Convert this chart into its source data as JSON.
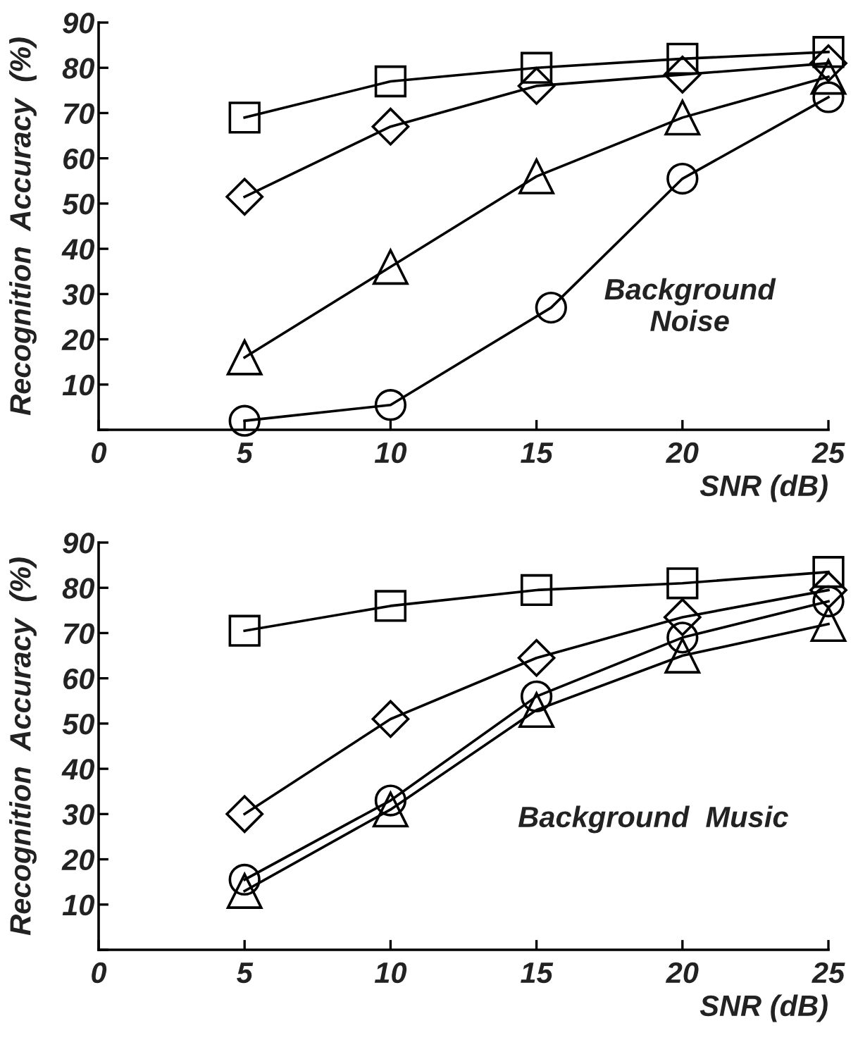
{
  "chart_data": [
    {
      "type": "line",
      "xlabel": "SNR (dB)",
      "ylabel": "Recognition  Accuracy  (%)",
      "annotations": [
        "Background\nNoise"
      ],
      "xlim": [
        0,
        25
      ],
      "ylim": [
        0,
        90
      ],
      "xticks": [
        0,
        5,
        10,
        15,
        20,
        25
      ],
      "yticks": [
        {
          "value": 0,
          "label": null
        },
        10,
        20,
        30,
        40,
        50,
        60,
        70,
        80,
        90
      ],
      "grid": false,
      "line_style": "solid",
      "series": [
        {
          "color": "#000000",
          "marker": "square",
          "x": [
            5,
            10,
            15,
            20,
            25
          ],
          "values": [
            69,
            77,
            80,
            82,
            83.5
          ]
        },
        {
          "color": "#000000",
          "marker": "diamond",
          "x": [
            5,
            10,
            15,
            20,
            25
          ],
          "values": [
            51.5,
            67,
            76,
            78.5,
            81
          ]
        },
        {
          "color": "#000000",
          "marker": "triangle",
          "x": [
            5,
            10,
            15,
            20,
            25
          ],
          "values": [
            16,
            36,
            56,
            69,
            78
          ]
        },
        {
          "color": "#000000",
          "marker": "circle",
          "x": [
            5,
            10,
            15.5,
            20,
            25
          ],
          "values": [
            2,
            5.5,
            27,
            55.5,
            73.5
          ]
        }
      ]
    },
    {
      "type": "line",
      "xlabel": "SNR (dB)",
      "ylabel": "Recognition  Accuracy  (%)",
      "annotations": [
        "Background  Music"
      ],
      "xlim": [
        0,
        25
      ],
      "ylim": [
        0,
        90
      ],
      "xticks": [
        0,
        5,
        10,
        15,
        20,
        25
      ],
      "yticks": [
        {
          "value": 0,
          "label": null
        },
        10,
        20,
        30,
        40,
        50,
        60,
        70,
        80,
        90
      ],
      "grid": false,
      "line_style": "solid",
      "series": [
        {
          "color": "#000000",
          "marker": "square",
          "x": [
            5,
            10,
            15,
            20,
            25
          ],
          "values": [
            70.5,
            76,
            79.5,
            81,
            83.5
          ]
        },
        {
          "color": "#000000",
          "marker": "diamond",
          "x": [
            5,
            10,
            15,
            20,
            25
          ],
          "values": [
            30,
            51,
            64.5,
            73.5,
            79.5
          ]
        },
        {
          "color": "#000000",
          "marker": "circle",
          "x": [
            5,
            10,
            15,
            20,
            25
          ],
          "values": [
            15.5,
            33,
            56,
            69,
            77
          ]
        },
        {
          "color": "#000000",
          "marker": "triangle",
          "x": [
            5,
            10,
            15,
            20,
            25
          ],
          "values": [
            13,
            31,
            53,
            65,
            72
          ]
        }
      ]
    }
  ]
}
